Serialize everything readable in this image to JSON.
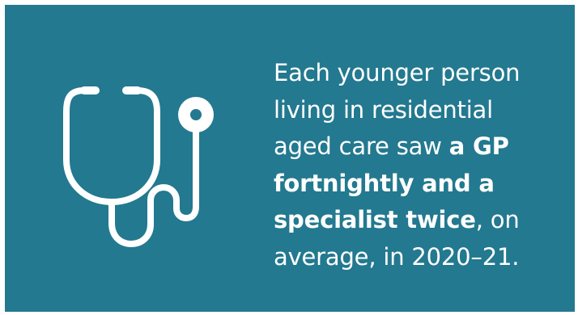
{
  "colors": {
    "background": "#23798f",
    "foreground": "#ffffff"
  },
  "icon": "stethoscope-icon",
  "statement": {
    "line1": "Each younger person",
    "line2": "living in residential",
    "line3_normal": "aged care saw ",
    "line3_bold": "a GP",
    "line4_bold": "fortnightly and a",
    "line5_bold": "specialist twice",
    "line5_normal": ", on",
    "line6": "average, in 2020–21."
  }
}
